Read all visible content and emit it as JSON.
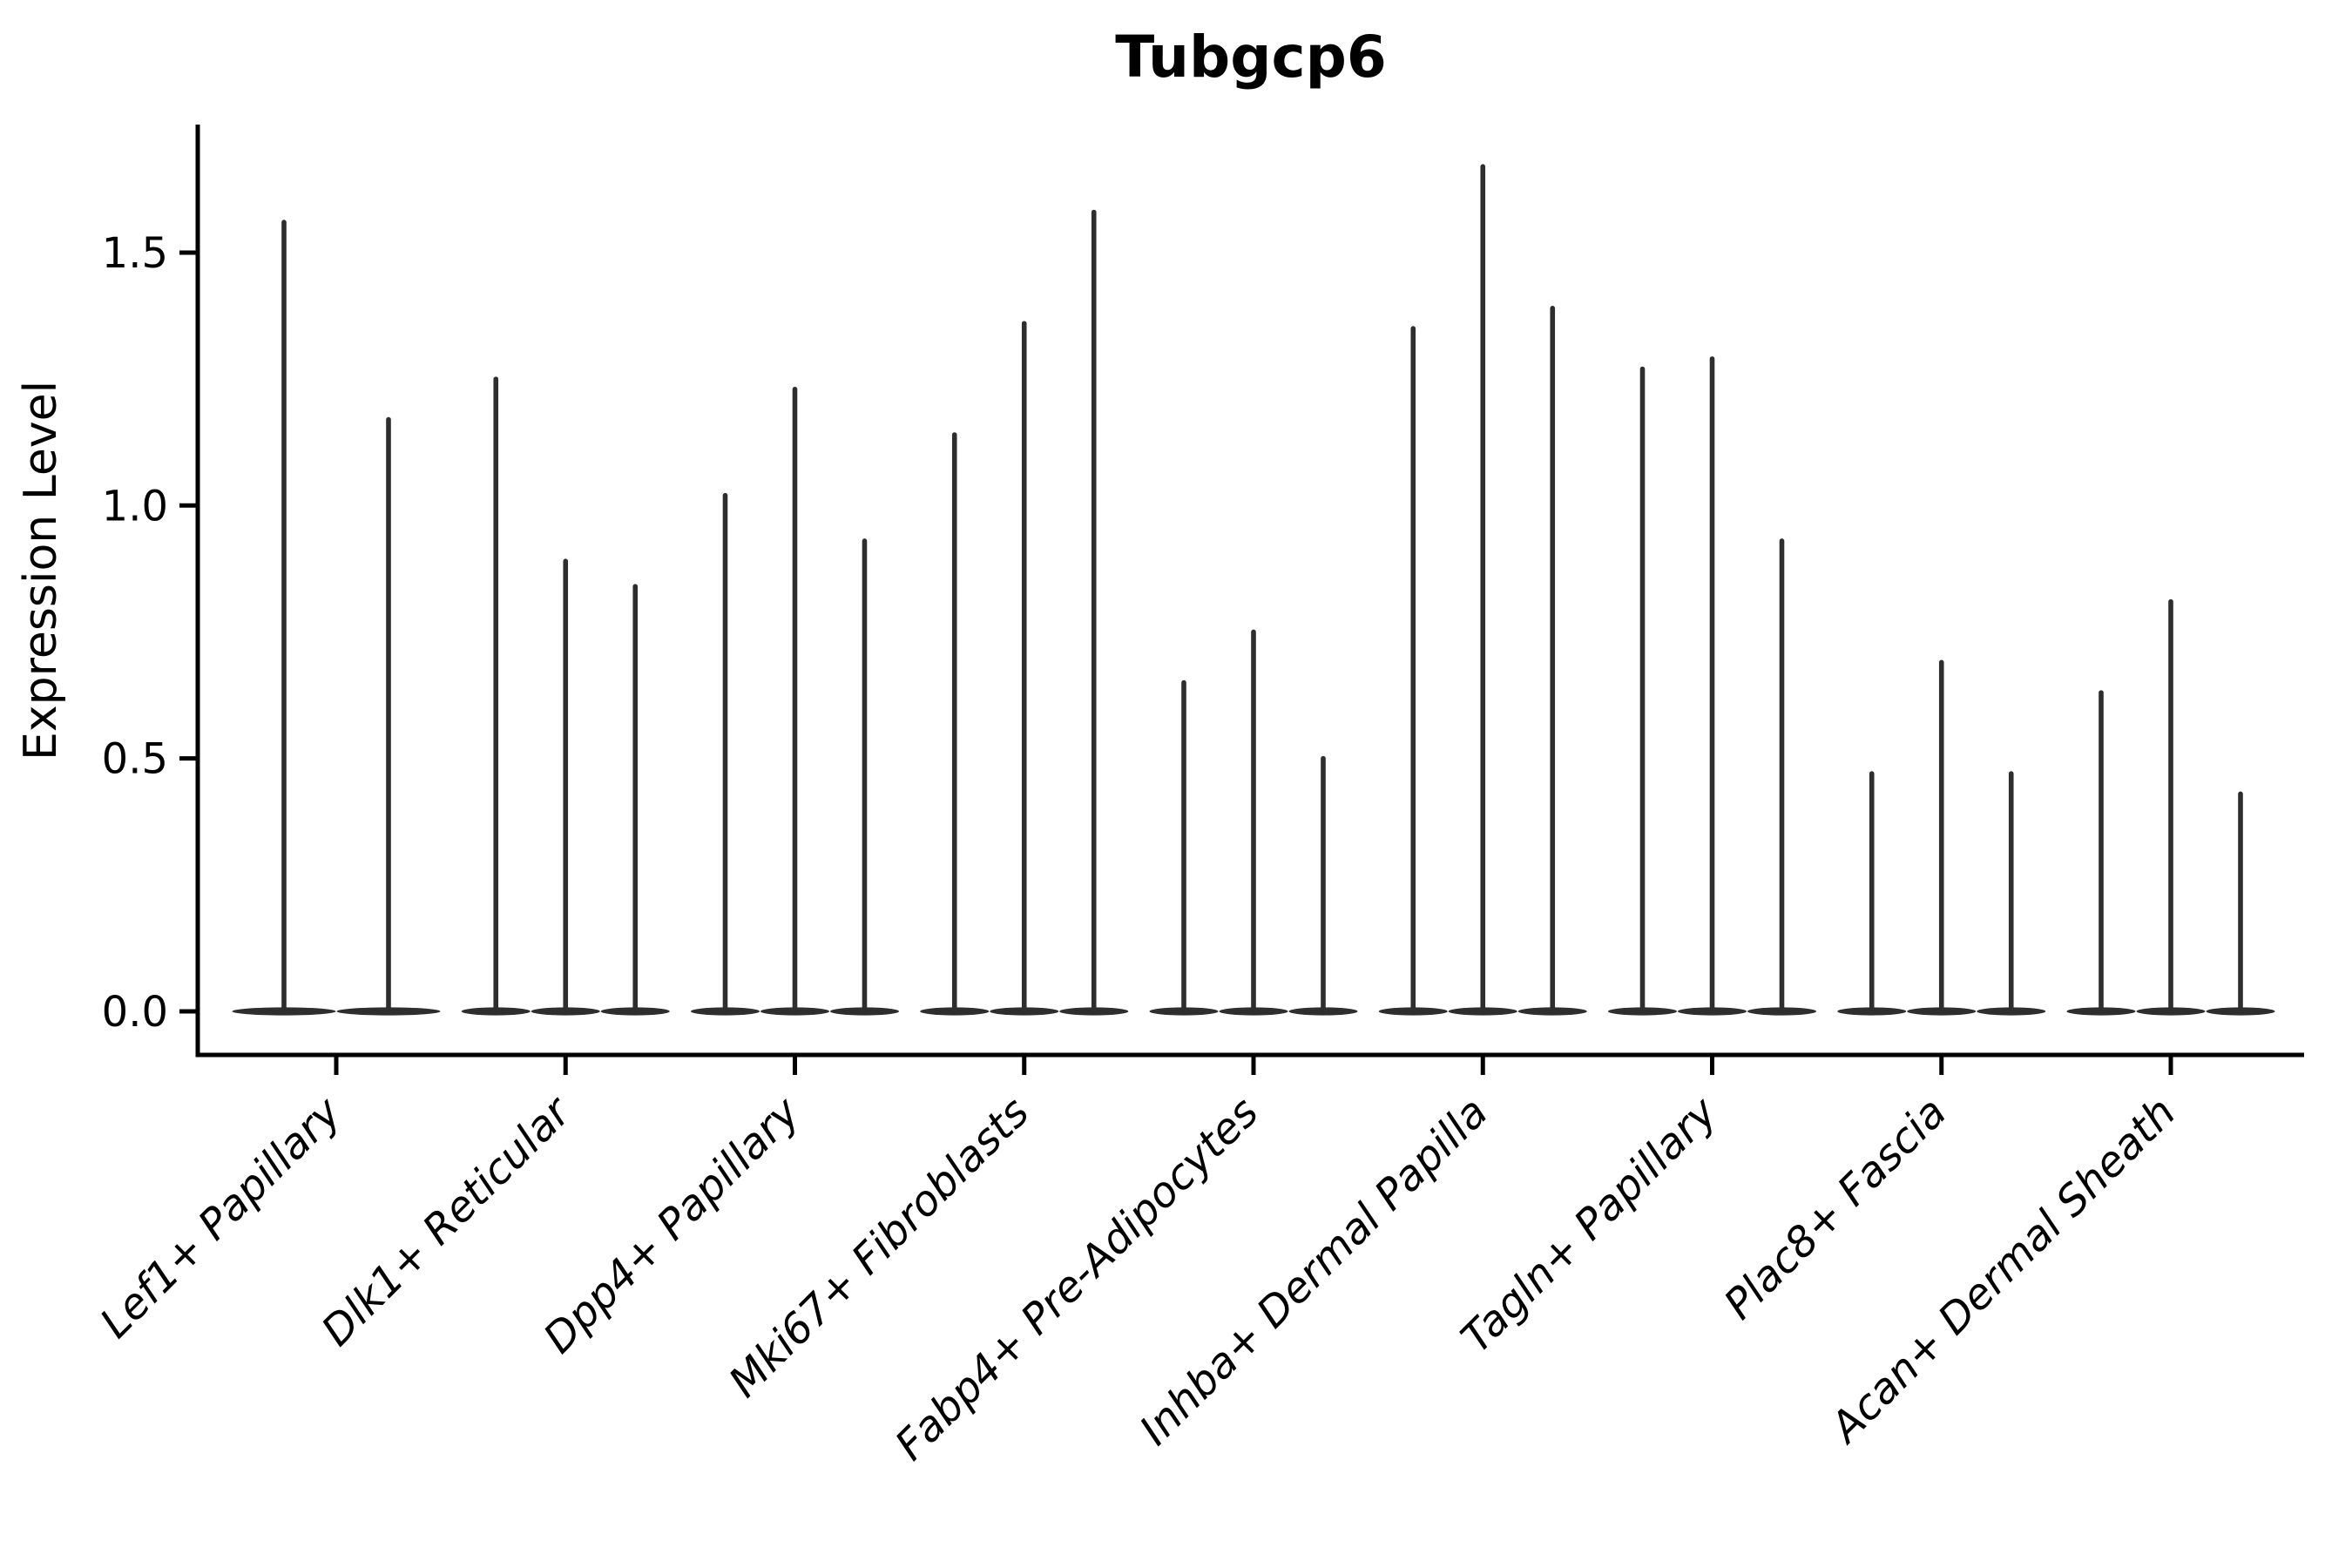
{
  "chart_data": {
    "type": "violin",
    "title": "Tubgcp6",
    "ylabel": "Expression Level",
    "xlabel": "",
    "grid": false,
    "legend": null,
    "background_color": "#ffffff",
    "axis_color": "#000000",
    "violin_color": "#2e2e2e",
    "ylim": [
      -0.09,
      1.75
    ],
    "yticks": [
      {
        "value": 0.0,
        "label": "0.0"
      },
      {
        "value": 0.5,
        "label": "0.5"
      },
      {
        "value": 1.0,
        "label": "1.0"
      },
      {
        "value": 1.5,
        "label": "1.5"
      }
    ],
    "categories": [
      "Lef1+ Papillary",
      "Dlk1+ Reticular",
      "Dpp4+ Papillary",
      "Mki67+ Fibroblasts",
      "Fabp4+ Pre-Adipocytes",
      "Inhba+ Dermal Papilla",
      "Tagln+ Papillary",
      "Plac8+ Fascia",
      "Acan+ Dermal Sheath"
    ],
    "series": [
      {
        "category": "Lef1+ Papillary",
        "violin_peaks": [
          1.56,
          1.17
        ]
      },
      {
        "category": "Dlk1+ Reticular",
        "violin_peaks": [
          1.25,
          0.89,
          0.84
        ]
      },
      {
        "category": "Dpp4+ Papillary",
        "violin_peaks": [
          1.02,
          1.23,
          0.93
        ]
      },
      {
        "category": "Mki67+ Fibroblasts",
        "violin_peaks": [
          1.14,
          1.36,
          1.58
        ]
      },
      {
        "category": "Fabp4+ Pre-Adipocytes",
        "violin_peaks": [
          0.65,
          0.75,
          0.5
        ]
      },
      {
        "category": "Inhba+ Dermal Papilla",
        "violin_peaks": [
          1.35,
          1.67,
          1.39
        ]
      },
      {
        "category": "Tagln+ Papillary",
        "violin_peaks": [
          1.27,
          1.29,
          0.93
        ]
      },
      {
        "category": "Plac8+ Fascia",
        "violin_peaks": [
          0.47,
          0.69,
          0.47
        ]
      },
      {
        "category": "Acan+ Dermal Sheath",
        "violin_peaks": [
          0.63,
          0.81,
          0.43
        ]
      }
    ],
    "shape_note": "Seurat-style violins: distribution mass concentrated at 0 (flat wide base) with a thin spike rising to each peak value"
  }
}
